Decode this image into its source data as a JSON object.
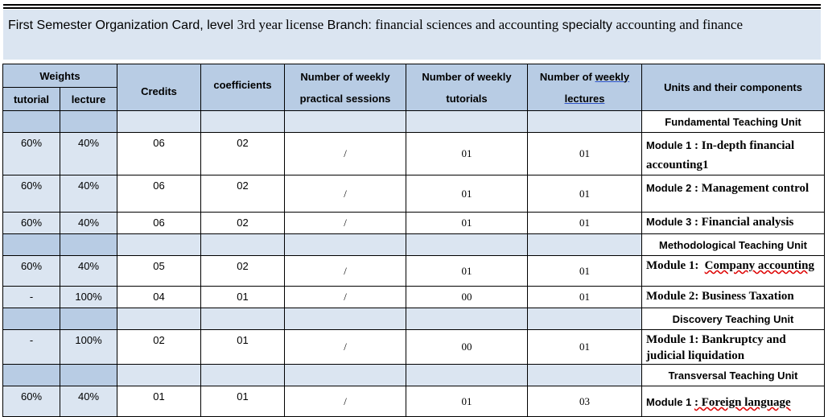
{
  "header": {
    "title_part1": "First Semester Organization Card, level",
    "title_part2": "3rd year license",
    "title_part3": "Branch:",
    "title_part4": "financial sciences and accounting",
    "title_part5": "specialty",
    "title_part6": "accounting and finance"
  },
  "columns": {
    "weights": "Weights",
    "tutorial": "tutorial",
    "lecture": "lecture",
    "credits": "Credits",
    "coefficients": "coefficients",
    "practical_line1": "Number of weekly",
    "practical_line2": "practical sessions",
    "tutorials_line1": "Number of weekly",
    "tutorials_line2": "tutorials",
    "lectures_line1a": "Number of",
    "lectures_line1b": "weekly",
    "lectures_line2": "lectures",
    "units": "Units and their components"
  },
  "units": [
    {
      "name": "Fundamental Teaching Unit",
      "modules": [
        {
          "label": "Module 1",
          "name": ": In-depth financial accounting1",
          "tutorial": "60%",
          "lecture": "40%",
          "credits": "06",
          "coef": "02",
          "practical": "/",
          "tutorials": "01",
          "lectures": "01"
        },
        {
          "label": "Module 2",
          "name": ": Management control",
          "tutorial": "60%",
          "lecture": "40%",
          "credits": "06",
          "coef": "02",
          "practical": "/",
          "tutorials": "01",
          "lectures": "01"
        },
        {
          "label": "Module 3",
          "name": ": Financial analysis",
          "tutorial": "60%",
          "lecture": "40%",
          "credits": "06",
          "coef": "02",
          "practical": "/",
          "tutorials": "01",
          "lectures": "01"
        }
      ]
    },
    {
      "name": "Methodological Teaching Unit",
      "modules": [
        {
          "label": "Module 1:",
          "name": "Company accounting",
          "tutorial": "60%",
          "lecture": "40%",
          "credits": "05",
          "coef": "02",
          "practical": "/",
          "tutorials": "01",
          "lectures": "01"
        },
        {
          "label": "Module 2:",
          "name": "Business Taxation",
          "tutorial": "-",
          "lecture": "100%",
          "credits": "04",
          "coef": "01",
          "practical": "/",
          "tutorials": "00",
          "lectures": "01"
        }
      ]
    },
    {
      "name": "Discovery Teaching Unit",
      "modules": [
        {
          "label": "Module 1:",
          "name": "Bankruptcy and judicial liquidation",
          "tutorial": "-",
          "lecture": "100%",
          "credits": "02",
          "coef": "01",
          "practical": "/",
          "tutorials": "00",
          "lectures": "01"
        }
      ]
    },
    {
      "name": "Transversal Teaching Unit",
      "modules": [
        {
          "label": "Module 1",
          "name": ": Foreign language",
          "tutorial": "60%",
          "lecture": "40%",
          "credits": "01",
          "coef": "01",
          "practical": "/",
          "tutorials": "01",
          "lectures": "03"
        }
      ]
    }
  ]
}
